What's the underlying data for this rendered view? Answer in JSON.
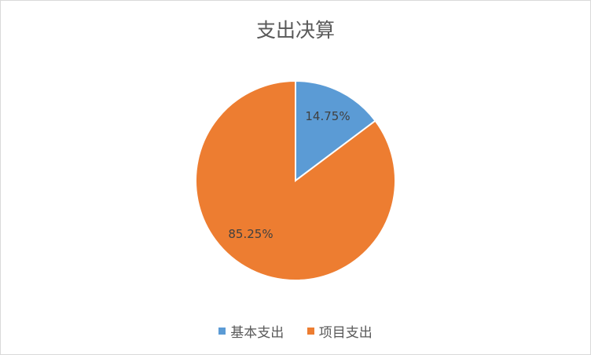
{
  "chart_data": {
    "type": "pie",
    "title": "支出决算",
    "categories": [
      "基本支出",
      "项目支出"
    ],
    "values": [
      14.75,
      85.25
    ],
    "labels": [
      "14.75%",
      "85.25%"
    ],
    "colors": [
      "#5B9BD5",
      "#ED7D31"
    ],
    "legend_position": "bottom"
  }
}
